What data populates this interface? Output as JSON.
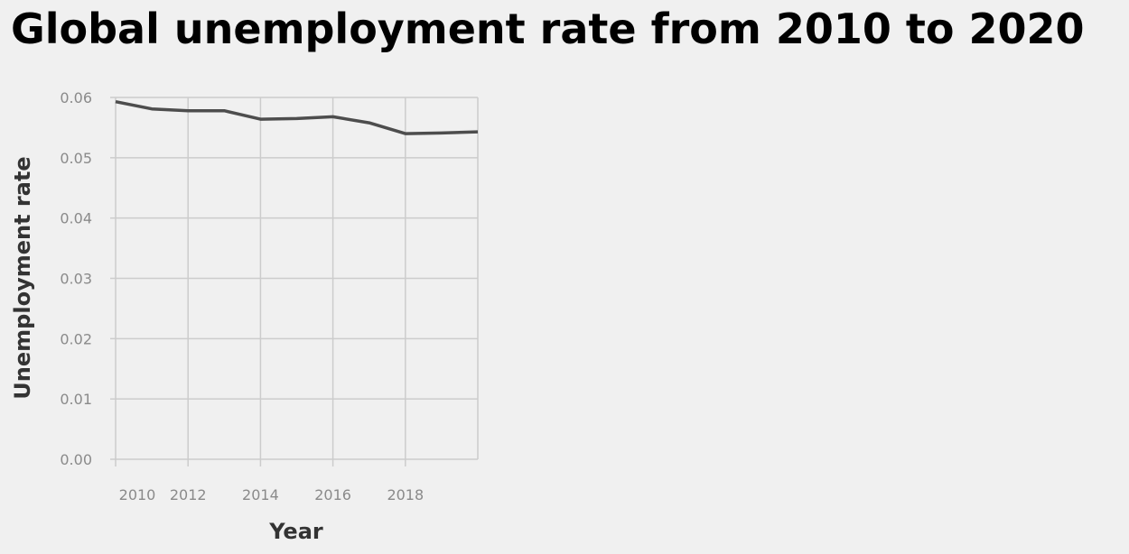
{
  "chart_data": {
    "type": "line",
    "title": "Global unemployment rate from 2010 to 2020",
    "xlabel": "Year",
    "ylabel": "Unemployment rate",
    "x": [
      2010,
      2011,
      2012,
      2013,
      2014,
      2015,
      2016,
      2017,
      2018,
      2019,
      2020
    ],
    "series": [
      {
        "values": [
          0.0593,
          0.0581,
          0.0578,
          0.0578,
          0.0564,
          0.0565,
          0.0568,
          0.0558,
          0.054,
          0.0541,
          0.0543
        ]
      }
    ],
    "xticks": [
      "2010",
      "2012",
      "2014",
      "2016",
      "2018"
    ],
    "xtick_values": [
      2010,
      2012,
      2014,
      2016,
      2018
    ],
    "yticks": [
      "0.00",
      "0.01",
      "0.02",
      "0.03",
      "0.04",
      "0.05",
      "0.06"
    ],
    "ytick_values": [
      0.0,
      0.01,
      0.02,
      0.03,
      0.04,
      0.05,
      0.06
    ],
    "xlim": [
      2010,
      2020
    ],
    "ylim": [
      0,
      0.06
    ],
    "grid": true,
    "legend": "none",
    "colors": {
      "line": "#4d4d4d",
      "grid": "#cccccc",
      "background": "#f0f0f0"
    }
  }
}
